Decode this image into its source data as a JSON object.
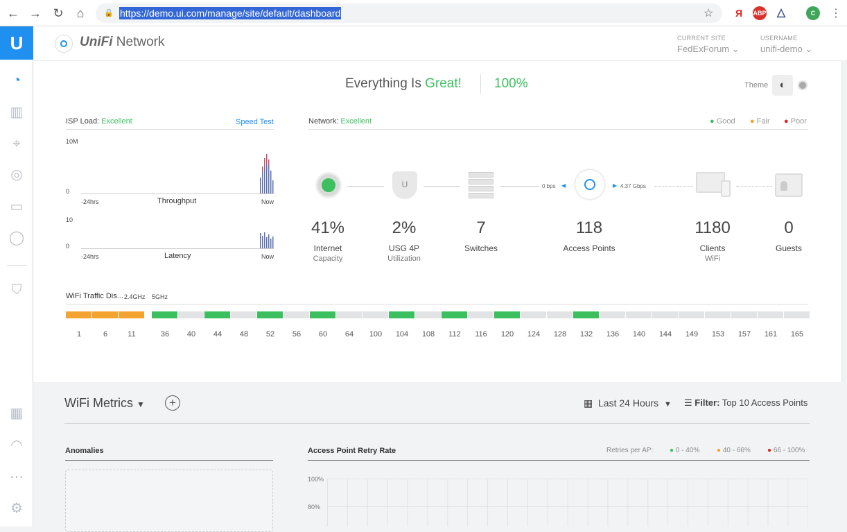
{
  "browser": {
    "url": "https://demo.ui.com/manage/site/default/dashboard"
  },
  "header": {
    "brand_prefix": "UniFi",
    "brand_suffix": "Network",
    "site_label": "CURRENT SITE",
    "site_value": "FedExForum",
    "user_label": "USERNAME",
    "user_value": "unifi-demo"
  },
  "status": {
    "prefix": "Everything Is",
    "word": "Great!",
    "percent": "100%",
    "theme_label": "Theme"
  },
  "isp": {
    "title": "ISP Load:",
    "rating": "Excellent",
    "speed_test": "Speed Test",
    "throughput_max": "10M",
    "throughput_min": "0",
    "throughput_label": "Throughput",
    "latency_max": "10",
    "latency_min": "0",
    "latency_label": "Latency",
    "from": "-24hrs",
    "to": "Now"
  },
  "network": {
    "title": "Network:",
    "rating": "Excellent",
    "legend": [
      "Good",
      "Fair",
      "Poor"
    ],
    "link_down": "0 bps",
    "link_up": "4.37 Gbps"
  },
  "stats": [
    {
      "value": "41%",
      "label": "Internet",
      "sub": "Capacity"
    },
    {
      "value": "2%",
      "label": "USG 4P",
      "sub": "Utilization"
    },
    {
      "value": "7",
      "label": "Switches",
      "sub": ""
    },
    {
      "value": "118",
      "label": "Access Points",
      "sub": ""
    },
    {
      "value": "1180",
      "label": "Clients",
      "sub": "WiFi"
    },
    {
      "value": "0",
      "label": "Guests",
      "sub": ""
    }
  ],
  "wifi": {
    "title": "WiFi Traffic Dis...",
    "band24": "2.4GHz",
    "band5": "5GHz",
    "channels24": [
      "1",
      "6",
      "11"
    ],
    "channels5": [
      "36",
      "40",
      "44",
      "48",
      "52",
      "56",
      "60",
      "64",
      "100",
      "104",
      "108",
      "112",
      "116",
      "120",
      "124",
      "128",
      "132",
      "136",
      "140",
      "144",
      "149",
      "153",
      "157",
      "161",
      "165"
    ]
  },
  "metrics": {
    "title": "WiFi Metrics",
    "range": "Last 24 Hours",
    "filter_label": "Filter:",
    "filter_value": "Top 10 Access Points",
    "anomalies": "Anomalies",
    "retry_title": "Access Point Retry Rate",
    "retries_label": "Retries per AP:",
    "retry_legend": [
      "0 - 40%",
      "40 - 66%",
      "66 - 100%"
    ],
    "y100": "100%",
    "y80": "80%"
  },
  "colors": {
    "accent": "#1f8ff0",
    "good": "#3cbf5f",
    "fair": "#f4a230",
    "poor": "#e0231d"
  }
}
